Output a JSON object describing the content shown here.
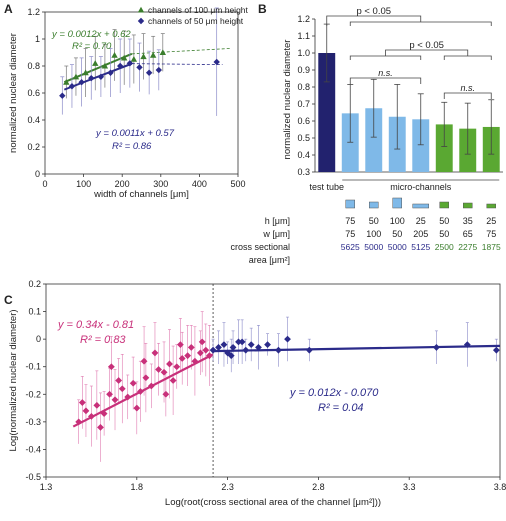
{
  "colors": {
    "green": "#3a7d2c",
    "blue": "#2b2b8a",
    "pink": "#c8307a",
    "light_blue": "#7fb9e8",
    "bright_green": "#5aa832",
    "navy": "#22226e",
    "axis": "#333333"
  },
  "chart_data": [
    {
      "panel": "A",
      "type": "scatter",
      "xlabel": "width of channels [μm]",
      "ylabel": "normalized nuclear diameter",
      "xlim": [
        0,
        500
      ],
      "ylim": [
        0,
        1.2
      ],
      "xticks": [
        0,
        100,
        200,
        300,
        400,
        500
      ],
      "yticks": [
        0,
        0.2,
        0.4,
        0.6,
        0.8,
        1.0,
        1.2
      ],
      "xtick_labels": [
        "0",
        "100",
        "200",
        "300",
        "400",
        "500"
      ],
      "ytick_labels": [
        "0",
        "0.2",
        "0.4",
        "0.6",
        "0.8",
        "1",
        "1.2"
      ],
      "legend_position": "top-right",
      "series": [
        {
          "name": "channels of 100 μm height",
          "marker": "triangle",
          "x": [
            50,
            75,
            100,
            125,
            150,
            175,
            200,
            225,
            250,
            275,
            300
          ],
          "y": [
            0.68,
            0.72,
            0.75,
            0.82,
            0.8,
            0.88,
            0.86,
            0.85,
            0.87,
            0.88,
            0.9
          ],
          "err": [
            0.12,
            0.14,
            0.18,
            0.2,
            0.16,
            0.19,
            0.2,
            0.18,
            0.17,
            0.14,
            0.14
          ],
          "fit": {
            "equation": "y = 0.0012x + 0.62",
            "r2": "R² = 0.70",
            "slope": 0.0012,
            "intercept": 0.62
          }
        },
        {
          "name": "channels of 50 μm height",
          "marker": "diamond",
          "x": [
            50,
            75,
            100,
            125,
            150,
            175,
            200,
            225,
            250,
            275,
            300,
            450
          ],
          "y": [
            0.58,
            0.65,
            0.68,
            0.71,
            0.72,
            0.75,
            0.8,
            0.82,
            0.79,
            0.75,
            0.77,
            0.83
          ],
          "err": [
            0.14,
            0.16,
            0.18,
            0.16,
            0.15,
            0.18,
            0.2,
            0.18,
            0.18,
            0.16,
            0.15,
            0.4
          ],
          "fit": {
            "equation": "y = 0.0011x + 0.57",
            "r2": "R² = 0.86",
            "slope": 0.0011,
            "intercept": 0.57
          }
        }
      ]
    },
    {
      "panel": "B",
      "type": "bar",
      "ylabel": "normalized nuclear diameter",
      "ylim": [
        0.3,
        1.2
      ],
      "yticks": [
        0.3,
        0.4,
        0.5,
        0.6,
        0.7,
        0.8,
        0.9,
        1.0,
        1.1,
        1.2
      ],
      "ytick_labels": [
        "0.3",
        "0.4",
        "0.5",
        "0.6",
        "0.7",
        "0.8",
        "0.9",
        "1.0",
        "1.1",
        "1.2"
      ],
      "values": [
        1.0,
        0.645,
        0.675,
        0.625,
        0.61,
        0.58,
        0.555,
        0.565
      ],
      "err": [
        0.17,
        0.17,
        0.17,
        0.19,
        0.15,
        0.13,
        0.15,
        0.16
      ],
      "bar_groups": [
        "navy",
        "light_blue",
        "light_blue",
        "light_blue",
        "light_blue",
        "bright_green",
        "bright_green",
        "bright_green"
      ],
      "significance": [
        {
          "label": "p < 0.05",
          "from": 0,
          "to": 5,
          "level": 1
        },
        {
          "label": "p < 0.05",
          "from": 2,
          "to": 6,
          "level": 2
        },
        {
          "label": "n.s.",
          "from": 1,
          "to": 4,
          "level": 3
        },
        {
          "label": "n.s.",
          "from": 5,
          "to": 7,
          "level": 4
        }
      ],
      "category_labels": {
        "test_tube": "test tube",
        "micro_channels": "micro-channels"
      },
      "table": {
        "row_labels": {
          "h": "h [μm]",
          "w": "w [μm]",
          "area1": "cross sectional",
          "area2": "area [μm²]"
        },
        "h": [
          "75",
          "50",
          "100",
          "25",
          "50",
          "35",
          "25"
        ],
        "w": [
          "75",
          "100",
          "50",
          "205",
          "50",
          "65",
          "75"
        ],
        "area": [
          "5625",
          "5000",
          "5000",
          "5125",
          "2500",
          "2275",
          "1875"
        ]
      }
    },
    {
      "panel": "C",
      "type": "scatter",
      "xlabel": "Log(root(cross sectional area of the channel [μm²]))",
      "ylabel": "Log(normalized nuclear diameter)",
      "xlim": [
        1.3,
        3.8
      ],
      "ylim": [
        -0.5,
        0.2
      ],
      "xticks": [
        1.3,
        1.8,
        2.3,
        2.8,
        3.3,
        3.8
      ],
      "yticks": [
        -0.5,
        -0.4,
        -0.3,
        -0.2,
        -0.1,
        0,
        0.1,
        0.2
      ],
      "xtick_labels": [
        "1.3",
        "1.8",
        "2.3",
        "2.8",
        "3.3",
        "3.8"
      ],
      "ytick_labels": [
        "-0.5",
        "-0.4",
        "-0.3",
        "-0.2",
        "-0.1",
        "0",
        "0.1",
        "0.2"
      ],
      "vline_x": 2.22,
      "series": [
        {
          "name": "",
          "color_key": "pink",
          "x": [
            1.48,
            1.52,
            1.55,
            1.58,
            1.62,
            1.65,
            1.68,
            1.72,
            1.75,
            1.78,
            1.82,
            1.85,
            1.88,
            1.92,
            1.95,
            1.98,
            2.02,
            2.05,
            2.08,
            2.12,
            2.15,
            2.18,
            2.2,
            1.6,
            1.7,
            1.8,
            1.9,
            2.0,
            2.1,
            1.5,
            1.66,
            1.84,
            1.96,
            2.04,
            2.16
          ],
          "y": [
            -0.3,
            -0.26,
            -0.28,
            -0.24,
            -0.27,
            -0.2,
            -0.22,
            -0.18,
            -0.21,
            -0.16,
            -0.19,
            -0.14,
            -0.17,
            -0.11,
            -0.12,
            -0.09,
            -0.1,
            -0.07,
            -0.06,
            -0.08,
            -0.05,
            -0.04,
            -0.06,
            -0.32,
            -0.15,
            -0.25,
            -0.05,
            -0.15,
            -0.03,
            -0.23,
            -0.1,
            -0.08,
            -0.2,
            -0.02,
            -0.01
          ],
          "fit": {
            "equation": "y = 0.34x - 0.81",
            "r2": "R² = 0.83",
            "slope": 0.34,
            "intercept": -0.81,
            "x_range": [
              1.45,
              2.22
            ]
          }
        },
        {
          "name": "",
          "color_key": "blue",
          "x": [
            2.22,
            2.25,
            2.28,
            2.3,
            2.33,
            2.36,
            2.4,
            2.43,
            2.47,
            2.52,
            2.58,
            2.63,
            2.75,
            3.45,
            3.62,
            3.78,
            2.32,
            2.38
          ],
          "y": [
            -0.04,
            -0.03,
            -0.02,
            -0.05,
            -0.03,
            -0.01,
            -0.04,
            -0.02,
            -0.03,
            -0.02,
            -0.04,
            0.0,
            -0.04,
            -0.03,
            -0.02,
            -0.04,
            -0.06,
            -0.01
          ],
          "fit": {
            "equation": "y = 0.012x - 0.070",
            "r2": "R² = 0.04",
            "slope": 0.012,
            "intercept": -0.07,
            "x_range": [
              2.22,
              3.8
            ]
          }
        }
      ]
    }
  ],
  "panel_letters": [
    "A",
    "B",
    "C"
  ]
}
